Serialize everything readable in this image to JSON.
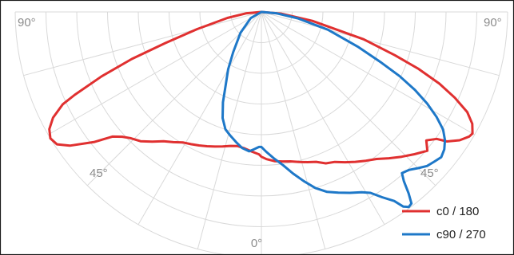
{
  "chart_data": {
    "type": "polar",
    "title": "",
    "angle_tick_labels": [
      "90°",
      "45°",
      "0°",
      "45°",
      "90°"
    ],
    "angle_range_deg": [
      -90,
      90
    ],
    "radial_rings": 8,
    "spoke_step_deg": 15,
    "grid": true,
    "legend_placement": "bottom-right",
    "series": [
      {
        "name": "c0 / 180",
        "color": "#e03030",
        "angles": [
          -90,
          -85,
          -80,
          -75,
          -72,
          -70,
          -68,
          -66,
          -65,
          -63,
          -61,
          -59,
          -57,
          -55,
          -52,
          -50,
          -48,
          -46,
          -43,
          -40,
          -37,
          -34,
          -31,
          -28,
          -25,
          -22,
          -19,
          -16,
          -13,
          -10,
          -7,
          -4,
          -1,
          0,
          2,
          5,
          8,
          11,
          14,
          17,
          20,
          23,
          26,
          29,
          32,
          35,
          38,
          41,
          44,
          47,
          50,
          52,
          54,
          55,
          57,
          59,
          60,
          62,
          64,
          66,
          68,
          70,
          72,
          75,
          80,
          85,
          90
        ],
        "values": [
          0,
          0.06,
          0.14,
          0.27,
          0.41,
          0.56,
          0.7,
          0.83,
          0.89,
          0.95,
          0.985,
          1.0,
          0.99,
          0.95,
          0.86,
          0.79,
          0.76,
          0.74,
          0.72,
          0.69,
          0.66,
          0.64,
          0.62,
          0.61,
          0.6,
          0.59,
          0.58,
          0.57,
          0.56,
          0.555,
          0.56,
          0.57,
          0.58,
          0.59,
          0.6,
          0.61,
          0.615,
          0.62,
          0.63,
          0.64,
          0.65,
          0.67,
          0.68,
          0.7,
          0.72,
          0.74,
          0.76,
          0.79,
          0.82,
          0.85,
          0.88,
          0.85,
          0.88,
          0.92,
          0.96,
          0.985,
          0.99,
          0.97,
          0.93,
          0.86,
          0.78,
          0.68,
          0.57,
          0.43,
          0.21,
          0.08,
          0
        ]
      },
      {
        "name": "c90 / 270",
        "color": "#1e78c8",
        "angles": [
          -90,
          -60,
          -45,
          -35,
          -30,
          -26,
          -23,
          -20,
          -17,
          -14,
          -11,
          -8,
          -5,
          -3,
          -1,
          0,
          2,
          5,
          8,
          11,
          14,
          17,
          20,
          23,
          26,
          29,
          31,
          33,
          35,
          36,
          37,
          38,
          39,
          40,
          41,
          43,
          45,
          47,
          49,
          51,
          53,
          55,
          57,
          59,
          61,
          63,
          65,
          67,
          70,
          75,
          80,
          85,
          90
        ],
        "values": [
          0,
          0.05,
          0.12,
          0.2,
          0.27,
          0.33,
          0.4,
          0.46,
          0.5,
          0.52,
          0.54,
          0.56,
          0.57,
          0.56,
          0.55,
          0.55,
          0.57,
          0.6,
          0.63,
          0.67,
          0.71,
          0.75,
          0.78,
          0.8,
          0.82,
          0.84,
          0.86,
          0.9,
          0.94,
          0.98,
          0.995,
          0.99,
          0.95,
          0.9,
          0.87,
          0.88,
          0.9,
          0.92,
          0.93,
          0.94,
          0.93,
          0.91,
          0.88,
          0.83,
          0.77,
          0.7,
          0.62,
          0.53,
          0.42,
          0.28,
          0.15,
          0.06,
          0
        ]
      }
    ]
  }
}
